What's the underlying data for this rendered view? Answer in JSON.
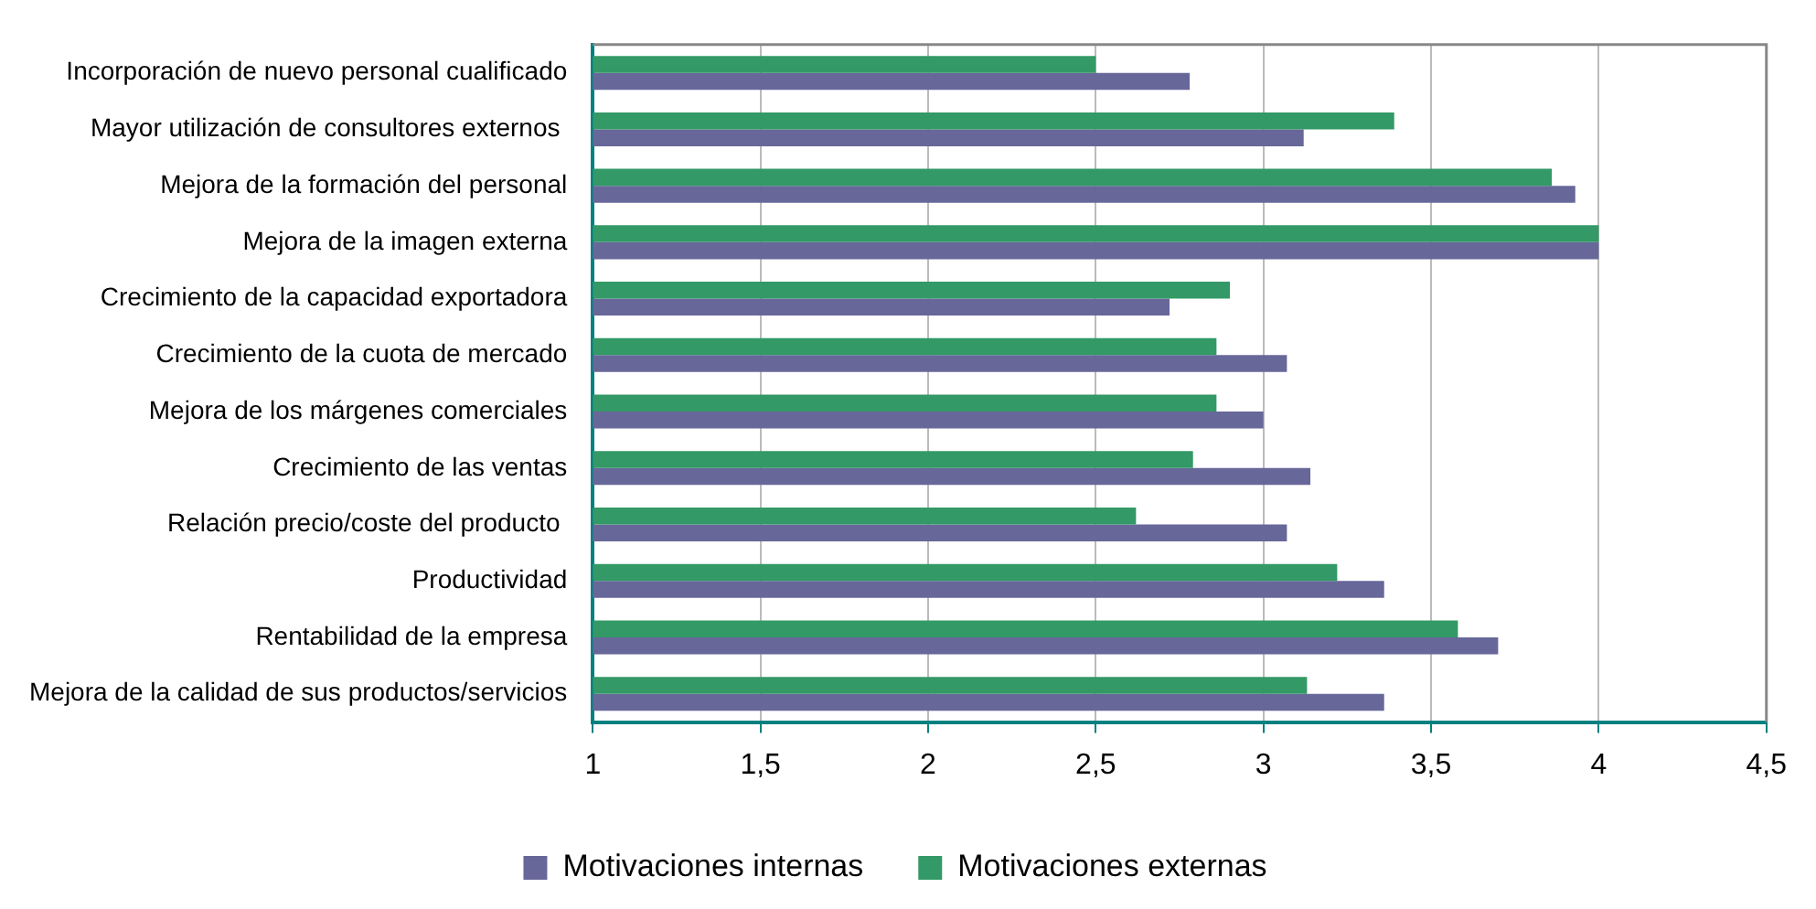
{
  "chart_data": {
    "type": "bar",
    "orientation": "horizontal",
    "categories": [
      "Incorporación de nuevo personal cualificado",
      "Mayor utilización de consultores externos ",
      "Mejora de la formación del personal",
      "Mejora de la imagen externa",
      "Crecimiento de la capacidad exportadora",
      "Crecimiento de la cuota de mercado",
      "Mejora de los márgenes comerciales",
      "Crecimiento de las ventas",
      "Relación precio/coste del producto ",
      "Productividad",
      "Rentabilidad de la empresa",
      "Mejora de la calidad de sus productos/servicios"
    ],
    "series": [
      {
        "name": "Motivaciones internas",
        "color": "#67679a",
        "values": [
          2.78,
          3.12,
          3.93,
          4,
          2.72,
          3.07,
          3.0,
          3.14,
          3.07,
          3.36,
          3.7,
          3.36
        ]
      },
      {
        "name": "Motivaciones externas",
        "color": "#339966",
        "values": [
          2.5,
          3.39,
          3.86,
          4,
          2.9,
          2.86,
          2.86,
          2.79,
          2.62,
          3.22,
          3.58,
          3.13
        ]
      }
    ],
    "xlim": [
      1,
      4.5
    ],
    "xticks": [
      {
        "value": 1,
        "label": "1"
      },
      {
        "value": 1.5,
        "label": "1,5"
      },
      {
        "value": 2,
        "label": "2"
      },
      {
        "value": 2.5,
        "label": "2,5"
      },
      {
        "value": 3,
        "label": "3"
      },
      {
        "value": 3.5,
        "label": "3,5"
      },
      {
        "value": 4,
        "label": "4"
      },
      {
        "value": 4.5,
        "label": "4,5"
      }
    ],
    "grid": "x",
    "legend": "bottom"
  }
}
